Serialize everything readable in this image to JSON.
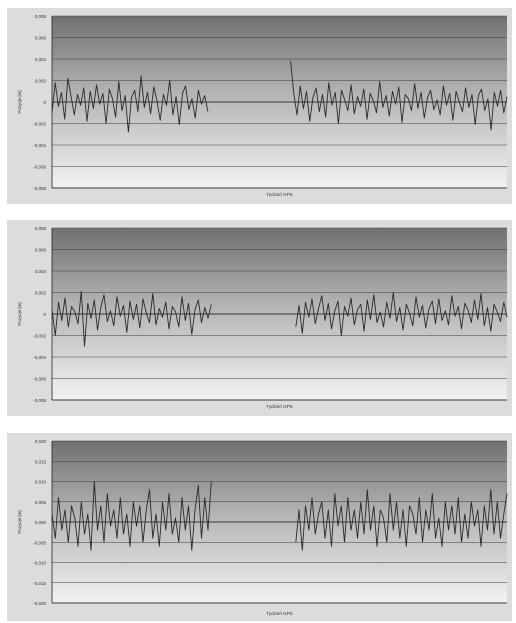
{
  "charts": [
    {
      "ylabel": "Pozycja [m]",
      "xlabel": "Tydzień GPS",
      "yticks": [
        "0,008",
        "0,006",
        "0,004",
        "0,002",
        "0",
        "-0,002",
        "-0,004",
        "-0,006",
        "-0,008"
      ]
    },
    {
      "ylabel": "Pozycja [m]",
      "xlabel": "Tydzień GPS",
      "yticks": [
        "0,008",
        "0,006",
        "0,004",
        "0,002",
        "0",
        "-0,002",
        "-0,004",
        "-0,006",
        "-0,008"
      ]
    },
    {
      "ylabel": "Pozycja [m]",
      "xlabel": "Tydzień GPS",
      "yticks": [
        "0,020",
        "0,015",
        "0,010",
        "0,005",
        "0,000",
        "-0,005",
        "-0,010",
        "-0,015",
        "-0,020"
      ]
    }
  ],
  "chart_data": [
    {
      "type": "line",
      "ylabel": "Pozycja [m]",
      "xlabel": "Tydzień GPS",
      "ylim": [
        -0.008,
        0.008
      ],
      "grid": true,
      "series": [
        {
          "values": [
            -0.001,
            0.0018,
            -0.0004,
            0.0009,
            -0.0016,
            0.0022,
            0.0005,
            -0.0012,
            0.0007,
            -0.0003,
            0.0013,
            -0.0018,
            0.001,
            -0.0006,
            0.0016,
            -0.0002,
            0.0008,
            -0.002,
            0.0012,
            0.0003,
            -0.0014,
            0.0019,
            -0.0008,
            0.0006,
            -0.0028,
            0.0004,
            0.0011,
            -0.0009,
            0.0024,
            -0.0005,
            0.0009,
            -0.0011,
            0.0014,
            0.0001,
            -0.0017,
            0.0007,
            -0.0003,
            0.002,
            -0.0012,
            0.0005,
            -0.0021,
            0.0008,
            0.0015,
            -0.0007,
            0.0003,
            -0.0015,
            0.0011,
            -0.0002,
            0.0006,
            -0.0009,
            null,
            null,
            null,
            null,
            null,
            null,
            null,
            null,
            null,
            null,
            null,
            null,
            null,
            null,
            null,
            null,
            null,
            null,
            null,
            null,
            null,
            null,
            null,
            null,
            null,
            0.0038,
            0.0008,
            -0.0012,
            0.0015,
            -0.0006,
            0.001,
            -0.0018,
            0.0004,
            0.0013,
            -0.0009,
            0.0007,
            -0.0014,
            0.0018,
            -0.0003,
            0.0009,
            -0.002,
            0.0011,
            0.0002,
            -0.0008,
            0.0016,
            -0.0011,
            0.0005,
            -0.0004,
            0.0012,
            -0.0016,
            0.0008,
            0.0001,
            -0.001,
            0.0019,
            -0.0005,
            0.0006,
            -0.0013,
            0.001,
            -0.0002,
            0.0014,
            -0.0019,
            0.0007,
            0.0003,
            -0.0008,
            0.0017,
            -0.0006,
            0.0009,
            -0.0015,
            0.0004,
            0.0011,
            -0.0007,
            0.0002,
            -0.0012,
            0.0015,
            -0.0003,
            0.0008,
            -0.0017,
            0.001,
            0.0,
            -0.0009,
            0.0013,
            -0.0005,
            0.0007,
            -0.0021,
            0.0006,
            0.0012,
            -0.0008,
            0.0003,
            -0.0026,
            0.0009,
            -0.0004,
            0.0011,
            -0.001,
            0.0005
          ]
        }
      ]
    },
    {
      "type": "line",
      "ylabel": "Pozycja [m]",
      "xlabel": "Tydzień GPS",
      "ylim": [
        -0.008,
        0.008
      ],
      "grid": true,
      "series": [
        {
          "values": [
            0.0004,
            -0.002,
            0.0011,
            -0.0006,
            0.0015,
            -0.0012,
            0.0007,
            0.0002,
            -0.0009,
            0.0021,
            -0.003,
            0.001,
            -0.0004,
            0.0013,
            -0.0015,
            0.0006,
            0.0018,
            -0.0007,
            0.0003,
            -0.0011,
            0.0016,
            -0.0002,
            0.0008,
            -0.0017,
            0.0012,
            -0.0005,
            0.0009,
            -0.0013,
            0.0014,
            0.0001,
            -0.0008,
            0.0019,
            -0.001,
            0.0005,
            -0.0003,
            0.0011,
            -0.0014,
            0.0007,
            0.0002,
            -0.0012,
            0.0016,
            -0.0006,
            0.001,
            -0.0019,
            0.0004,
            0.0013,
            -0.0008,
            0.0006,
            -0.0004,
            0.0009,
            null,
            null,
            null,
            null,
            null,
            null,
            null,
            null,
            null,
            null,
            null,
            null,
            null,
            null,
            null,
            null,
            null,
            null,
            null,
            null,
            null,
            null,
            null,
            null,
            null,
            -0.0012,
            0.0008,
            -0.0018,
            0.0011,
            -0.0003,
            0.0014,
            -0.0009,
            0.0005,
            0.0017,
            -0.0006,
            0.001,
            -0.0014,
            0.0003,
            0.0012,
            -0.002,
            0.0007,
            -0.0002,
            0.0015,
            -0.001,
            0.0004,
            0.0009,
            -0.0016,
            0.0013,
            -0.0005,
            0.0018,
            -0.0008,
            0.0002,
            -0.0012,
            0.0011,
            -0.0004,
            0.002,
            -0.0007,
            0.0006,
            -0.0015,
            0.0009,
            0.0001,
            -0.0011,
            0.0016,
            -0.0003,
            0.0008,
            -0.0013,
            0.0005,
            0.0012,
            -0.0009,
            0.0014,
            -0.0006,
            0.0003,
            -0.001,
            0.0017,
            -0.0002,
            0.0007,
            -0.0014,
            0.001,
            0.0004,
            -0.0008,
            0.0013,
            -0.0005,
            0.0019,
            -0.0011,
            0.0006,
            -0.0016,
            0.0009,
            0.0002,
            -0.0007,
            0.0011,
            -0.0003
          ]
        }
      ]
    },
    {
      "type": "line",
      "ylabel": "Pozycja [m]",
      "xlabel": "Tydzień GPS",
      "ylim": [
        -0.02,
        0.02
      ],
      "grid": true,
      "series": [
        {
          "values": [
            0.002,
            -0.004,
            0.006,
            -0.002,
            0.003,
            -0.005,
            0.004,
            0.001,
            -0.006,
            0.005,
            -0.003,
            0.002,
            -0.007,
            0.01,
            -0.002,
            0.004,
            -0.005,
            0.007,
            -0.001,
            0.003,
            -0.004,
            0.006,
            -0.003,
            0.002,
            -0.006,
            0.005,
            -0.001,
            0.004,
            -0.005,
            0.003,
            0.008,
            -0.004,
            0.002,
            -0.006,
            0.005,
            -0.002,
            0.007,
            -0.003,
            0.001,
            -0.005,
            0.006,
            -0.002,
            0.004,
            -0.007,
            0.003,
            0.009,
            -0.004,
            0.006,
            -0.002,
            0.01,
            null,
            null,
            null,
            null,
            null,
            null,
            null,
            null,
            null,
            null,
            null,
            null,
            null,
            null,
            null,
            null,
            null,
            null,
            null,
            null,
            null,
            null,
            null,
            null,
            null,
            -0.005,
            0.003,
            -0.007,
            0.004,
            -0.002,
            0.006,
            -0.003,
            0.002,
            0.005,
            -0.004,
            0.003,
            -0.006,
            0.007,
            -0.001,
            0.004,
            -0.005,
            0.006,
            -0.002,
            0.003,
            -0.004,
            0.005,
            -0.003,
            0.008,
            -0.002,
            0.004,
            -0.006,
            0.003,
            0.001,
            -0.005,
            0.007,
            -0.002,
            0.005,
            -0.004,
            0.003,
            -0.006,
            0.004,
            0.002,
            -0.003,
            0.006,
            -0.005,
            0.003,
            -0.002,
            0.007,
            -0.004,
            0.001,
            -0.006,
            0.005,
            -0.002,
            0.004,
            -0.003,
            0.006,
            -0.005,
            0.002,
            -0.004,
            0.005,
            -0.001,
            0.003,
            -0.006,
            0.004,
            -0.002,
            0.008,
            -0.003,
            0.005,
            -0.004,
            0.002,
            0.007
          ]
        }
      ]
    }
  ]
}
